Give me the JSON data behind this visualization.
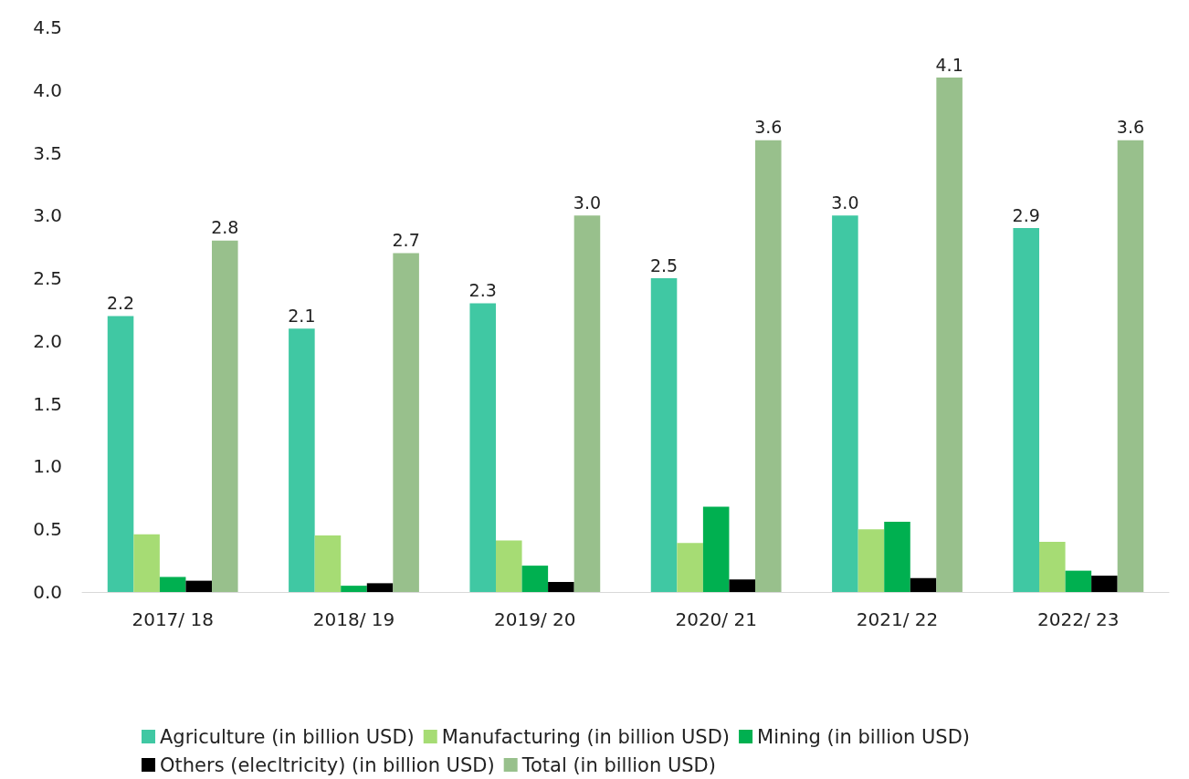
{
  "chart_data": {
    "type": "bar",
    "categories": [
      "2017/ 18",
      "2018/ 19",
      "2019/ 20",
      "2020/ 21",
      "2021/ 22",
      "2022/ 23"
    ],
    "series": [
      {
        "name": "Agriculture (in billion USD)",
        "color": "#40c8a3",
        "values": [
          2.2,
          2.1,
          2.3,
          2.5,
          3.0,
          2.9
        ],
        "value_labels": [
          "2.2",
          "2.1",
          "2.3",
          "2.5",
          "3.0",
          "2.9"
        ]
      },
      {
        "name": "Manufacturing (in billion USD)",
        "color": "#a6dc74",
        "values": [
          0.46,
          0.45,
          0.41,
          0.39,
          0.5,
          0.4
        ]
      },
      {
        "name": "Mining (in billion USD)",
        "color": "#00b050",
        "values": [
          0.12,
          0.05,
          0.21,
          0.68,
          0.56,
          0.17
        ]
      },
      {
        "name": "Others (elecltricity) (in billion USD)",
        "color": "#000000",
        "values": [
          0.09,
          0.07,
          0.08,
          0.1,
          0.11,
          0.13
        ]
      },
      {
        "name": "Total (in billion USD)",
        "color": "#98c08c",
        "values": [
          2.8,
          2.7,
          3.0,
          3.6,
          4.1,
          3.6
        ],
        "value_labels": [
          "2.8",
          "2.7",
          "3.0",
          "3.6",
          "4.1",
          "3.6"
        ]
      }
    ],
    "ylim": [
      0,
      4.5
    ],
    "yticks": [
      {
        "value": 0,
        "label": "0.0"
      },
      {
        "value": 0.5,
        "label": "0.5"
      },
      {
        "value": 1,
        "label": "1.0"
      },
      {
        "value": 1.5,
        "label": "1.5"
      },
      {
        "value": 2,
        "label": "2.0"
      },
      {
        "value": 2.5,
        "label": "2.5"
      },
      {
        "value": 3,
        "label": "3.0"
      },
      {
        "value": 3.5,
        "label": "3.5"
      },
      {
        "value": 4,
        "label": "4.0"
      },
      {
        "value": 4.5,
        "label": "4.5"
      }
    ],
    "grid": false,
    "legend": "bottom"
  }
}
